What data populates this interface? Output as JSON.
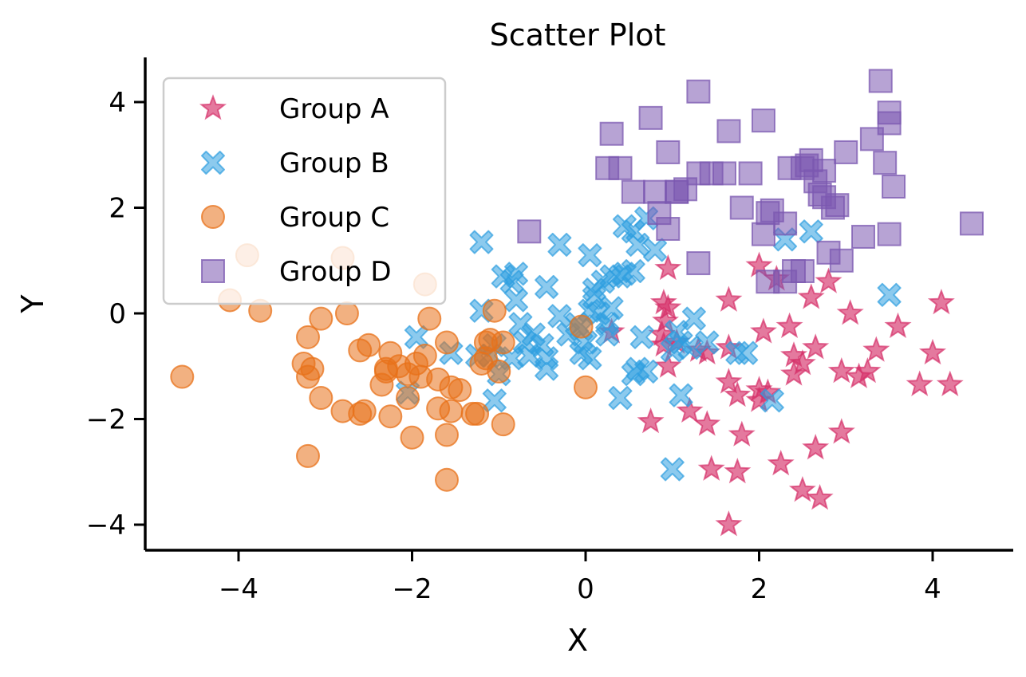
{
  "chart_data": {
    "type": "scatter",
    "title": "Scatter Plot",
    "xlabel": "X",
    "ylabel": "Y",
    "xlim": [
      -5.1,
      4.9
    ],
    "ylim": [
      -4.5,
      4.8
    ],
    "xticks": [
      -4,
      -2,
      0,
      2,
      4
    ],
    "yticks": [
      -4,
      -2,
      0,
      2,
      4
    ],
    "grid": false,
    "legend_position": "top-left",
    "series": [
      {
        "name": "Group A",
        "marker": "star",
        "color": "#d6316a",
        "points": [
          [
            0.95,
            0.85
          ],
          [
            0.9,
            0.2
          ],
          [
            0.95,
            0.1
          ],
          [
            0.92,
            -0.15
          ],
          [
            0.88,
            -0.4
          ],
          [
            0.9,
            -0.6
          ],
          [
            1.05,
            -0.55
          ],
          [
            0.95,
            -1.0
          ],
          [
            1.3,
            -0.7
          ],
          [
            1.4,
            -0.75
          ],
          [
            1.2,
            -1.85
          ],
          [
            1.4,
            -2.1
          ],
          [
            0.75,
            -2.05
          ],
          [
            1.45,
            -2.95
          ],
          [
            1.65,
            -4.0
          ],
          [
            1.75,
            -3.0
          ],
          [
            1.8,
            -2.3
          ],
          [
            1.65,
            -1.3
          ],
          [
            1.75,
            -1.55
          ],
          [
            1.65,
            -0.65
          ],
          [
            1.65,
            0.25
          ],
          [
            2.0,
            0.9
          ],
          [
            2.05,
            -0.35
          ],
          [
            2.2,
            0.65
          ],
          [
            2.35,
            -0.25
          ],
          [
            2.4,
            -0.8
          ],
          [
            2.5,
            -0.95
          ],
          [
            2.4,
            -1.15
          ],
          [
            2.65,
            -0.65
          ],
          [
            2.6,
            0.3
          ],
          [
            2.8,
            0.6
          ],
          [
            2.0,
            -1.45
          ],
          [
            2.0,
            -1.65
          ],
          [
            2.1,
            -1.5
          ],
          [
            2.25,
            -2.85
          ],
          [
            2.5,
            -3.35
          ],
          [
            2.65,
            -2.55
          ],
          [
            2.7,
            -3.5
          ],
          [
            2.95,
            -2.25
          ],
          [
            2.95,
            -1.1
          ],
          [
            3.05,
            0.0
          ],
          [
            3.15,
            -1.2
          ],
          [
            3.25,
            -1.1
          ],
          [
            3.35,
            -0.7
          ],
          [
            3.6,
            -0.25
          ],
          [
            3.85,
            -1.35
          ],
          [
            4.0,
            -0.75
          ],
          [
            4.1,
            0.2
          ],
          [
            4.2,
            -1.35
          ],
          [
            0.3,
            -0.35
          ]
        ]
      },
      {
        "name": "Group B",
        "marker": "x",
        "color": "#2e9ee0",
        "points": [
          [
            -1.2,
            1.35
          ],
          [
            -1.2,
            0.05
          ],
          [
            -1.25,
            -0.8
          ],
          [
            -1.05,
            -0.6
          ],
          [
            -1.1,
            -0.8
          ],
          [
            -1.0,
            -1.15
          ],
          [
            -1.05,
            -1.65
          ],
          [
            -1.95,
            -0.45
          ],
          [
            -2.05,
            -1.5
          ],
          [
            -1.55,
            -0.75
          ],
          [
            -0.95,
            0.7
          ],
          [
            -0.85,
            0.6
          ],
          [
            -0.8,
            0.75
          ],
          [
            -0.8,
            0.25
          ],
          [
            -0.75,
            -0.2
          ],
          [
            -0.7,
            -0.55
          ],
          [
            -0.65,
            -0.8
          ],
          [
            -0.85,
            -0.85
          ],
          [
            -0.6,
            -0.4
          ],
          [
            -0.5,
            -0.6
          ],
          [
            -0.45,
            -0.85
          ],
          [
            -0.45,
            -1.05
          ],
          [
            -0.45,
            0.5
          ],
          [
            -0.3,
            1.3
          ],
          [
            -0.3,
            -0.05
          ],
          [
            -0.1,
            -0.2
          ],
          [
            -0.05,
            -0.3
          ],
          [
            0.05,
            1.1
          ],
          [
            0.1,
            0.3
          ],
          [
            0.15,
            0.0
          ],
          [
            0.2,
            0.6
          ],
          [
            0.3,
            0.1
          ],
          [
            0.25,
            -0.4
          ],
          [
            0.3,
            0.7
          ],
          [
            0.4,
            0.7
          ],
          [
            0.45,
            0.75
          ],
          [
            0.55,
            0.8
          ],
          [
            0.45,
            1.65
          ],
          [
            0.55,
            1.55
          ],
          [
            0.6,
            1.3
          ],
          [
            0.7,
            1.8
          ],
          [
            0.8,
            1.2
          ],
          [
            0.55,
            -1.15
          ],
          [
            0.6,
            -1.05
          ],
          [
            0.65,
            -0.45
          ],
          [
            0.7,
            -1.1
          ],
          [
            1.1,
            -1.55
          ],
          [
            1.05,
            -0.35
          ],
          [
            1.1,
            -0.55
          ],
          [
            1.25,
            -0.1
          ],
          [
            1.4,
            -0.55
          ],
          [
            1.75,
            -0.75
          ],
          [
            1.85,
            -0.75
          ],
          [
            2.15,
            -1.65
          ],
          [
            2.3,
            1.4
          ],
          [
            2.6,
            1.55
          ],
          [
            3.5,
            0.35
          ],
          [
            1.0,
            -2.95
          ],
          [
            0.4,
            -1.6
          ],
          [
            0.05,
            -0.85
          ],
          [
            -0.05,
            -0.75
          ],
          [
            0.0,
            -0.55
          ],
          [
            0.1,
            0.45
          ],
          [
            0.25,
            -0.2
          ],
          [
            1.2,
            -0.65
          ],
          [
            1.0,
            -0.7
          ],
          [
            -0.2,
            -0.4
          ],
          [
            0.05,
            0.05
          ]
        ]
      },
      {
        "name": "Group C",
        "marker": "circle",
        "color": "#e8711a",
        "points": [
          [
            -4.65,
            -1.2
          ],
          [
            -4.1,
            0.25
          ],
          [
            -3.9,
            1.1
          ],
          [
            -3.75,
            0.05
          ],
          [
            -3.25,
            -0.95
          ],
          [
            -3.2,
            -1.2
          ],
          [
            -3.2,
            -0.45
          ],
          [
            -3.15,
            -1.05
          ],
          [
            -3.2,
            -2.7
          ],
          [
            -3.05,
            -0.1
          ],
          [
            -3.05,
            -1.6
          ],
          [
            -2.8,
            1.05
          ],
          [
            -2.8,
            -1.85
          ],
          [
            -2.75,
            0.0
          ],
          [
            -2.6,
            -0.7
          ],
          [
            -2.6,
            -1.9
          ],
          [
            -2.5,
            -0.6
          ],
          [
            -2.55,
            -1.85
          ],
          [
            -2.3,
            -1.05
          ],
          [
            -2.3,
            -1.1
          ],
          [
            -2.35,
            -1.35
          ],
          [
            -2.25,
            -0.75
          ],
          [
            -2.25,
            -1.95
          ],
          [
            -2.15,
            -1.0
          ],
          [
            -2.05,
            -1.6
          ],
          [
            -2.0,
            -2.35
          ],
          [
            -1.95,
            -0.95
          ],
          [
            -1.85,
            -0.8
          ],
          [
            -1.9,
            -1.2
          ],
          [
            -1.85,
            0.55
          ],
          [
            -1.8,
            -0.1
          ],
          [
            -1.7,
            -1.25
          ],
          [
            -1.7,
            -1.8
          ],
          [
            -1.6,
            -0.55
          ],
          [
            -1.55,
            -1.4
          ],
          [
            -1.55,
            -1.85
          ],
          [
            -1.6,
            -2.3
          ],
          [
            -1.6,
            -3.15
          ],
          [
            -1.45,
            -1.45
          ],
          [
            -1.3,
            -1.9
          ],
          [
            -1.15,
            -0.85
          ],
          [
            -1.15,
            -0.55
          ],
          [
            -1.1,
            -0.5
          ],
          [
            -1.05,
            0.05
          ],
          [
            -1.0,
            -1.1
          ],
          [
            -0.95,
            -0.55
          ],
          [
            -0.95,
            -2.1
          ],
          [
            -0.05,
            -0.25
          ],
          [
            0.0,
            -1.4
          ],
          [
            -2.05,
            -1.15
          ],
          [
            -1.2,
            -0.95
          ],
          [
            -1.25,
            -1.9
          ]
        ]
      },
      {
        "name": "Group D",
        "marker": "square",
        "color": "#7b58b0",
        "points": [
          [
            -0.65,
            1.55
          ],
          [
            0.25,
            2.75
          ],
          [
            0.3,
            3.4
          ],
          [
            0.4,
            2.75
          ],
          [
            0.55,
            2.3
          ],
          [
            0.75,
            3.7
          ],
          [
            0.8,
            2.3
          ],
          [
            0.85,
            1.9
          ],
          [
            0.95,
            3.05
          ],
          [
            0.95,
            1.6
          ],
          [
            1.05,
            2.3
          ],
          [
            1.15,
            2.35
          ],
          [
            1.3,
            4.2
          ],
          [
            1.3,
            0.95
          ],
          [
            1.45,
            2.65
          ],
          [
            1.6,
            2.65
          ],
          [
            1.65,
            3.45
          ],
          [
            1.8,
            2.0
          ],
          [
            1.9,
            2.65
          ],
          [
            2.05,
            3.65
          ],
          [
            2.05,
            1.5
          ],
          [
            2.1,
            1.9
          ],
          [
            2.15,
            1.95
          ],
          [
            2.1,
            0.6
          ],
          [
            2.3,
            0.6
          ],
          [
            2.3,
            1.7
          ],
          [
            2.35,
            2.75
          ],
          [
            2.4,
            0.8
          ],
          [
            2.5,
            0.8
          ],
          [
            2.5,
            2.75
          ],
          [
            2.55,
            2.8
          ],
          [
            2.6,
            2.9
          ],
          [
            2.65,
            2.5
          ],
          [
            2.7,
            2.25
          ],
          [
            2.75,
            2.7
          ],
          [
            2.75,
            2.2
          ],
          [
            2.8,
            1.15
          ],
          [
            2.85,
            2.0
          ],
          [
            2.9,
            2.05
          ],
          [
            3.0,
            3.05
          ],
          [
            3.2,
            1.45
          ],
          [
            3.3,
            3.3
          ],
          [
            3.4,
            4.4
          ],
          [
            3.5,
            3.8
          ],
          [
            3.5,
            3.6
          ],
          [
            3.45,
            2.85
          ],
          [
            3.55,
            2.4
          ],
          [
            3.5,
            1.5
          ],
          [
            4.45,
            1.7
          ],
          [
            1.3,
            2.65
          ],
          [
            1.05,
            2.3
          ],
          [
            2.95,
            1.0
          ]
        ]
      }
    ]
  }
}
